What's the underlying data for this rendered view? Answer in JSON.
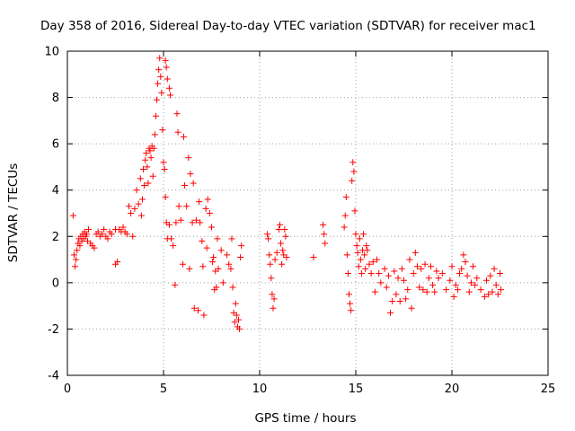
{
  "chart_data": {
    "type": "scatter",
    "title": "Day 358 of 2016, Sidereal Day-to-day VTEC variation (SDTVAR) for receiver mac1",
    "xlabel": "GPS time / hours",
    "ylabel": "SDTVAR / TECUs",
    "xlim": [
      0,
      25
    ],
    "ylim": [
      -4,
      10
    ],
    "xticks": [
      0,
      5,
      10,
      15,
      20,
      25
    ],
    "yticks": [
      -4,
      -2,
      0,
      2,
      4,
      6,
      8,
      10
    ],
    "grid": true,
    "marker": "+",
    "color": "#ff0000",
    "series": [
      {
        "name": "SDTVAR",
        "points": [
          [
            0.3,
            2.9
          ],
          [
            0.35,
            1.2
          ],
          [
            0.4,
            0.7
          ],
          [
            0.45,
            1.0
          ],
          [
            0.5,
            1.4
          ],
          [
            0.55,
            1.7
          ],
          [
            0.6,
            1.9
          ],
          [
            0.65,
            1.6
          ],
          [
            0.7,
            2.0
          ],
          [
            0.75,
            1.8
          ],
          [
            0.8,
            2.1
          ],
          [
            0.85,
            1.9
          ],
          [
            0.9,
            2.2
          ],
          [
            0.95,
            2.0
          ],
          [
            1.0,
            2.1
          ],
          [
            1.05,
            1.8
          ],
          [
            1.1,
            2.3
          ],
          [
            1.2,
            1.7
          ],
          [
            1.3,
            1.6
          ],
          [
            1.4,
            1.5
          ],
          [
            1.5,
            2.1
          ],
          [
            1.6,
            2.2
          ],
          [
            1.7,
            2.0
          ],
          [
            1.8,
            2.1
          ],
          [
            1.9,
            2.3
          ],
          [
            2.0,
            2.0
          ],
          [
            2.1,
            1.9
          ],
          [
            2.2,
            2.2
          ],
          [
            2.3,
            2.1
          ],
          [
            2.5,
            2.3
          ],
          [
            2.5,
            0.8
          ],
          [
            2.6,
            0.9
          ],
          [
            2.7,
            2.3
          ],
          [
            2.8,
            2.2
          ],
          [
            2.9,
            2.4
          ],
          [
            3.0,
            2.2
          ],
          [
            3.1,
            2.1
          ],
          [
            3.2,
            3.3
          ],
          [
            3.3,
            3.0
          ],
          [
            3.4,
            2.0
          ],
          [
            3.5,
            3.2
          ],
          [
            3.6,
            4.0
          ],
          [
            3.7,
            3.4
          ],
          [
            3.8,
            4.5
          ],
          [
            3.85,
            2.9
          ],
          [
            3.9,
            3.6
          ],
          [
            3.95,
            4.9
          ],
          [
            4.0,
            4.2
          ],
          [
            4.05,
            5.3
          ],
          [
            4.1,
            5.6
          ],
          [
            4.15,
            5.0
          ],
          [
            4.2,
            4.3
          ],
          [
            4.25,
            5.8
          ],
          [
            4.3,
            5.7
          ],
          [
            4.35,
            5.4
          ],
          [
            4.4,
            5.9
          ],
          [
            4.45,
            4.6
          ],
          [
            4.5,
            5.8
          ],
          [
            4.55,
            6.4
          ],
          [
            4.6,
            7.2
          ],
          [
            4.65,
            7.9
          ],
          [
            4.7,
            8.6
          ],
          [
            4.75,
            9.2
          ],
          [
            4.8,
            9.7
          ],
          [
            4.85,
            8.9
          ],
          [
            4.9,
            8.2
          ],
          [
            4.95,
            6.6
          ],
          [
            5.0,
            5.2
          ],
          [
            5.05,
            4.9
          ],
          [
            5.1,
            3.7
          ],
          [
            5.15,
            2.6
          ],
          [
            5.2,
            1.9
          ],
          [
            5.1,
            9.6
          ],
          [
            5.15,
            9.3
          ],
          [
            5.2,
            8.8
          ],
          [
            5.3,
            8.4
          ],
          [
            5.35,
            8.1
          ],
          [
            5.3,
            2.5
          ],
          [
            5.4,
            1.9
          ],
          [
            5.5,
            1.6
          ],
          [
            5.6,
            -0.1
          ],
          [
            5.65,
            2.6
          ],
          [
            5.7,
            7.3
          ],
          [
            5.75,
            6.5
          ],
          [
            5.8,
            3.3
          ],
          [
            5.9,
            2.7
          ],
          [
            6.0,
            0.8
          ],
          [
            6.05,
            6.3
          ],
          [
            6.1,
            4.2
          ],
          [
            6.2,
            3.3
          ],
          [
            6.3,
            5.4
          ],
          [
            6.35,
            0.6
          ],
          [
            6.4,
            4.7
          ],
          [
            6.5,
            2.6
          ],
          [
            6.55,
            4.3
          ],
          [
            6.6,
            -1.1
          ],
          [
            6.7,
            2.7
          ],
          [
            6.8,
            -1.2
          ],
          [
            6.85,
            3.5
          ],
          [
            6.9,
            2.6
          ],
          [
            7.0,
            1.8
          ],
          [
            7.05,
            0.7
          ],
          [
            7.1,
            -1.4
          ],
          [
            7.2,
            3.2
          ],
          [
            7.25,
            1.5
          ],
          [
            7.3,
            3.6
          ],
          [
            7.4,
            3.0
          ],
          [
            7.5,
            2.4
          ],
          [
            7.55,
            0.9
          ],
          [
            7.6,
            1.1
          ],
          [
            7.65,
            -0.3
          ],
          [
            7.7,
            0.5
          ],
          [
            7.75,
            -0.2
          ],
          [
            7.8,
            1.9
          ],
          [
            7.85,
            0.6
          ],
          [
            8.0,
            1.4
          ],
          [
            8.1,
            0.0
          ],
          [
            8.3,
            1.2
          ],
          [
            8.4,
            0.8
          ],
          [
            8.5,
            0.6
          ],
          [
            8.55,
            1.9
          ],
          [
            8.6,
            -0.2
          ],
          [
            8.65,
            -1.3
          ],
          [
            8.7,
            -1.7
          ],
          [
            8.75,
            -0.9
          ],
          [
            8.8,
            -1.4
          ],
          [
            8.85,
            -1.9
          ],
          [
            8.9,
            -1.6
          ],
          [
            8.95,
            -2.0
          ],
          [
            9.0,
            1.1
          ],
          [
            9.05,
            1.6
          ],
          [
            10.4,
            2.1
          ],
          [
            10.45,
            1.9
          ],
          [
            10.5,
            1.2
          ],
          [
            10.55,
            0.8
          ],
          [
            10.6,
            0.2
          ],
          [
            10.65,
            -0.5
          ],
          [
            10.7,
            -1.1
          ],
          [
            10.75,
            -0.7
          ],
          [
            10.8,
            1.0
          ],
          [
            10.9,
            1.3
          ],
          [
            11.0,
            2.3
          ],
          [
            11.05,
            2.5
          ],
          [
            11.1,
            1.7
          ],
          [
            11.15,
            0.8
          ],
          [
            11.2,
            1.4
          ],
          [
            11.25,
            1.2
          ],
          [
            11.3,
            2.3
          ],
          [
            11.35,
            2.0
          ],
          [
            11.4,
            1.1
          ],
          [
            12.8,
            1.1
          ],
          [
            13.3,
            2.5
          ],
          [
            13.35,
            2.1
          ],
          [
            13.4,
            1.7
          ],
          [
            14.4,
            2.4
          ],
          [
            14.45,
            2.9
          ],
          [
            14.5,
            3.7
          ],
          [
            14.55,
            1.2
          ],
          [
            14.6,
            0.4
          ],
          [
            14.65,
            -0.5
          ],
          [
            14.7,
            -0.9
          ],
          [
            14.75,
            -1.2
          ],
          [
            14.8,
            4.4
          ],
          [
            14.85,
            5.2
          ],
          [
            14.9,
            4.8
          ],
          [
            14.95,
            3.1
          ],
          [
            15.0,
            2.1
          ],
          [
            15.05,
            1.6
          ],
          [
            15.1,
            1.3
          ],
          [
            15.15,
            0.7
          ],
          [
            15.2,
            1.9
          ],
          [
            15.25,
            1.0
          ],
          [
            15.3,
            0.4
          ],
          [
            15.35,
            1.4
          ],
          [
            15.4,
            2.1
          ],
          [
            15.45,
            1.2
          ],
          [
            15.5,
            0.6
          ],
          [
            15.55,
            1.6
          ],
          [
            15.6,
            1.4
          ],
          [
            15.7,
            0.8
          ],
          [
            15.8,
            0.4
          ],
          [
            15.9,
            0.9
          ],
          [
            16.0,
            -0.4
          ],
          [
            16.1,
            1.0
          ],
          [
            16.2,
            0.4
          ],
          [
            16.3,
            0.0
          ],
          [
            16.5,
            0.6
          ],
          [
            16.6,
            -0.2
          ],
          [
            16.7,
            0.3
          ],
          [
            16.8,
            -1.3
          ],
          [
            16.9,
            -0.8
          ],
          [
            17.0,
            0.5
          ],
          [
            17.1,
            -0.5
          ],
          [
            17.2,
            0.2
          ],
          [
            17.3,
            -0.8
          ],
          [
            17.4,
            0.6
          ],
          [
            17.5,
            0.1
          ],
          [
            17.6,
            -0.7
          ],
          [
            17.7,
            -0.3
          ],
          [
            17.8,
            1.0
          ],
          [
            17.9,
            -1.1
          ],
          [
            18.0,
            0.4
          ],
          [
            18.1,
            1.3
          ],
          [
            18.2,
            0.7
          ],
          [
            18.3,
            -0.2
          ],
          [
            18.4,
            0.6
          ],
          [
            18.5,
            -0.3
          ],
          [
            18.6,
            0.8
          ],
          [
            18.7,
            -0.4
          ],
          [
            18.8,
            0.2
          ],
          [
            18.9,
            0.7
          ],
          [
            19.0,
            -0.1
          ],
          [
            19.1,
            -0.4
          ],
          [
            19.2,
            0.5
          ],
          [
            19.3,
            0.2
          ],
          [
            19.5,
            0.4
          ],
          [
            19.7,
            -0.3
          ],
          [
            19.9,
            0.1
          ],
          [
            20.0,
            0.7
          ],
          [
            20.1,
            -0.6
          ],
          [
            20.2,
            -0.1
          ],
          [
            20.3,
            -0.3
          ],
          [
            20.4,
            0.4
          ],
          [
            20.5,
            0.6
          ],
          [
            20.6,
            1.2
          ],
          [
            20.7,
            0.9
          ],
          [
            20.8,
            0.3
          ],
          [
            20.9,
            -0.4
          ],
          [
            21.0,
            0.0
          ],
          [
            21.1,
            0.7
          ],
          [
            21.2,
            -0.1
          ],
          [
            21.3,
            0.2
          ],
          [
            21.5,
            -0.3
          ],
          [
            21.7,
            -0.6
          ],
          [
            21.8,
            0.1
          ],
          [
            21.9,
            -0.5
          ],
          [
            22.0,
            0.3
          ],
          [
            22.1,
            -0.4
          ],
          [
            22.2,
            0.6
          ],
          [
            22.3,
            -0.1
          ],
          [
            22.4,
            -0.5
          ],
          [
            22.5,
            0.4
          ],
          [
            22.55,
            -0.3
          ]
        ]
      }
    ]
  }
}
